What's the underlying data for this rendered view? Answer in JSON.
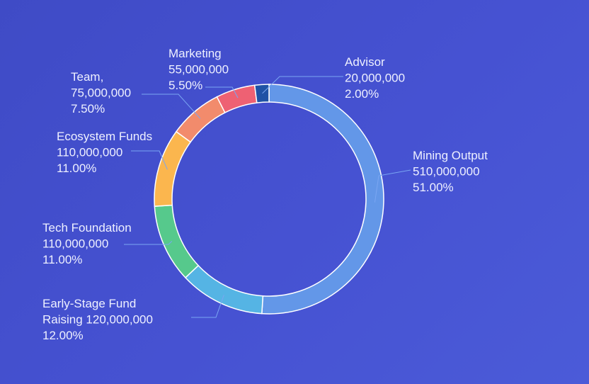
{
  "chart_data": {
    "type": "pie",
    "variant": "donut",
    "slices": [
      {
        "name": "Mining Output",
        "value": 510000000,
        "amount_label": "510,000,000",
        "percent": 51.0,
        "percent_label": "51.00%",
        "color": "#6397e8",
        "lines": [
          "Mining Output",
          "510,000,000",
          "51.00%"
        ]
      },
      {
        "name": "Early-Stage Fund Raising",
        "value": 120000000,
        "amount_label": "120,000,000",
        "percent": 12.0,
        "percent_label": "12.00%",
        "color": "#55b4e4",
        "lines": [
          "Early-Stage Fund",
          "Raising 120,000,000",
          "12.00%"
        ]
      },
      {
        "name": "Tech Foundation",
        "value": 110000000,
        "amount_label": "110,000,000",
        "percent": 11.0,
        "percent_label": "11.00%",
        "color": "#56c98c",
        "lines": [
          "Tech Foundation",
          "110,000,000",
          "11.00%"
        ]
      },
      {
        "name": "Ecosystem Funds",
        "value": 110000000,
        "amount_label": "110,000,000",
        "percent": 11.0,
        "percent_label": "11.00%",
        "color": "#fbb64e",
        "lines": [
          "Ecosystem Funds",
          "110,000,000",
          "11.00%"
        ]
      },
      {
        "name": "Team,",
        "value": 75000000,
        "amount_label": "75,000,000",
        "percent": 7.5,
        "percent_label": "7.50%",
        "color": "#f28b6c",
        "lines": [
          "Team,",
          "75,000,000",
          "7.50%"
        ]
      },
      {
        "name": "Marketing",
        "value": 55000000,
        "amount_label": "55,000,000",
        "percent": 5.5,
        "percent_label": "5.50%",
        "color": "#ee6173",
        "lines": [
          "Marketing",
          "55,000,000",
          "5.50%"
        ]
      },
      {
        "name": "Advisor",
        "value": 20000000,
        "amount_label": "20,000,000",
        "percent": 2.0,
        "percent_label": "2.00%",
        "color": "#1f52a5",
        "lines": [
          "Advisor",
          "20,000,000",
          "2.00%"
        ]
      }
    ],
    "start_angle": "12 o'clock",
    "direction": "clockwise",
    "legend": "none",
    "label_style": "outside with leader lines",
    "label_color": "#eef0ff",
    "leader_color": "#7aa6f2",
    "border_color": "#ffffff"
  }
}
